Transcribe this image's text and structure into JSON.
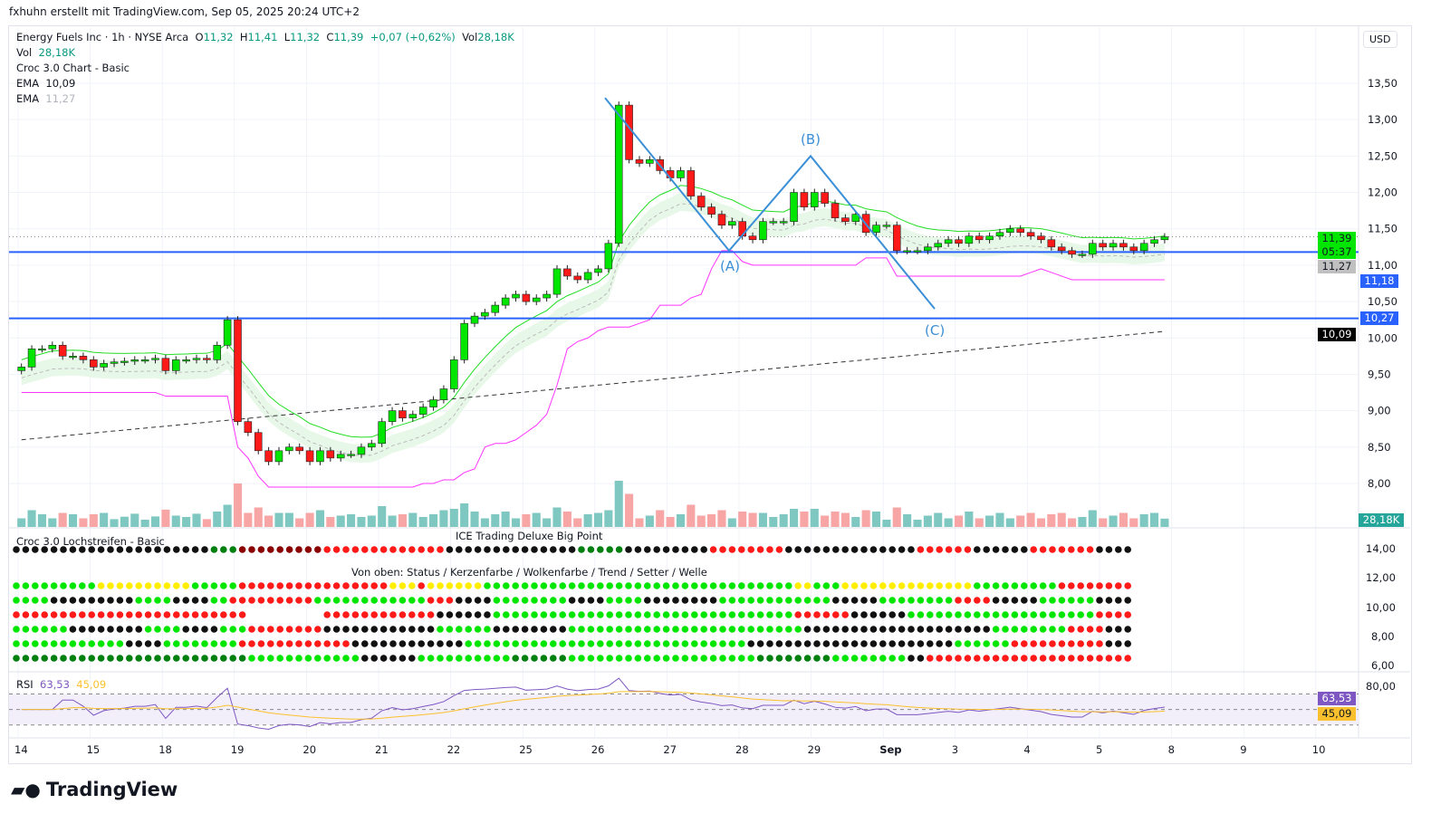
{
  "credit": "fxhuhn erstellt mit TradingView.com, Sep 05, 2025 20:24 UTC+2",
  "legend": {
    "symbol": "Energy Fuels Inc · 1h · NYSE Arca",
    "o_label": "O",
    "o": "11,32",
    "h_label": "H",
    "h": "11,41",
    "l_label": "L",
    "l": "11,32",
    "c_label": "C",
    "c": "11,39",
    "change": "+0,07 (+0,62%)",
    "vol_label": "Vol",
    "vol": "28,18K",
    "vol_row_label": "Vol",
    "vol_row": "28,18K",
    "croc": "Croc 3.0 Chart - Basic",
    "ema1_label": "EMA",
    "ema1": "10,09",
    "ema2_label": "EMA",
    "ema2": "11,27"
  },
  "currency": "USD",
  "price_tags": {
    "last": "11,39",
    "countdown": "05:37",
    "ema_fast": "11,27",
    "line1": "11,18",
    "line2": "10,27",
    "ema_slow": "10,09",
    "volume": "28,18K",
    "rsi": "63,53",
    "rsi_ma": "45,09"
  },
  "wave_labels": [
    "(A)",
    "(B)",
    "(C)"
  ],
  "panel2": {
    "title": "Croc 3.0 Lochstreifen - Basic",
    "subtitle": "ICE Trading Deluxe Big Point",
    "rows_caption": "Von oben: Status / Kerzenfarbe / Wolkenfarbe / Trend / Setter / Welle",
    "axis": [
      "14,00",
      "12,00",
      "10,00",
      "8,00",
      "6,00"
    ]
  },
  "rsi": {
    "label": "RSI",
    "value": "63,53",
    "ma": "45,09",
    "axis": "80,00"
  },
  "brand": "TradingView",
  "colors": {
    "up": "#00e600",
    "down": "#ff1a1a",
    "vol_up": "#7fc8c2",
    "vol_down": "#f7a5a5",
    "line": "#2962ff",
    "abc": "#3b8fd6",
    "cloud": "#e8f8e8",
    "pink": "#ff33ff"
  },
  "chart_data": {
    "type": "candlestick",
    "title": "Energy Fuels Inc · 1h · NYSE Arca",
    "ylim": [
      7.7,
      13.8
    ],
    "yticks": [
      "13,50",
      "13,00",
      "12,50",
      "12,00",
      "11,50",
      "11,00",
      "10,50",
      "10,00",
      "9,50",
      "9,00",
      "8,50",
      "8,00"
    ],
    "ytick_values": [
      13.5,
      13,
      12.5,
      12,
      11.5,
      11,
      10.5,
      10,
      9.5,
      9,
      8.5,
      8
    ],
    "xticks": [
      "14",
      "15",
      "18",
      "19",
      "20",
      "21",
      "22",
      "25",
      "26",
      "27",
      "28",
      "29",
      "Sep",
      "3",
      "4",
      "5",
      "8",
      "9",
      "10"
    ],
    "bars_per_day": 7,
    "closes": [
      9.6,
      9.85,
      9.85,
      9.9,
      9.75,
      9.75,
      9.7,
      9.6,
      9.65,
      9.67,
      9.68,
      9.7,
      9.7,
      9.72,
      9.55,
      9.7,
      9.7,
      9.72,
      9.7,
      9.9,
      10.25,
      8.85,
      8.7,
      8.45,
      8.3,
      8.45,
      8.5,
      8.45,
      8.3,
      8.45,
      8.35,
      8.4,
      8.4,
      8.5,
      8.55,
      8.85,
      9.0,
      8.9,
      8.95,
      9.05,
      9.15,
      9.3,
      9.7,
      10.2,
      10.3,
      10.35,
      10.45,
      10.55,
      10.6,
      10.5,
      10.55,
      10.6,
      10.95,
      10.85,
      10.8,
      10.9,
      10.95,
      11.3,
      13.2,
      12.45,
      12.4,
      12.45,
      12.3,
      12.2,
      12.3,
      11.95,
      11.8,
      11.7,
      11.55,
      11.6,
      11.4,
      11.35,
      11.6,
      11.6,
      11.6,
      12.0,
      11.8,
      12.0,
      11.85,
      11.65,
      11.6,
      11.7,
      11.45,
      11.55,
      11.55,
      11.2,
      11.2,
      11.2,
      11.25,
      11.3,
      11.35,
      11.3,
      11.4,
      11.35,
      11.4,
      11.45,
      11.5,
      11.45,
      11.4,
      11.35,
      11.25,
      11.2,
      11.15,
      11.15,
      11.3,
      11.25,
      11.3,
      11.25,
      11.2,
      11.3,
      11.35,
      11.39
    ],
    "hlines": [
      11.18,
      10.27
    ],
    "abc_points": [
      13.3,
      11.2,
      12.5,
      10.4
    ],
    "ema_slow": {
      "start": 8.6,
      "end": 10.09
    },
    "dot_rows": [
      "k21d3R9r13k14d5k9r8k14r6k6r7k4",
      "g9y10g5r16y3r1y6g33y2g3y14g9r12y6g4y5g9",
      "g4k9g4k4g2r9g12r3k4g8k4g4k8g12k5g8r4k5g6k9g3",
      "r25w8r12k6g32r6k6g20r4",
      "g6k8g4k4g3r8k12g6k8g25k20g8r4k4",
      "g12k4g8r12k12g30k22g6r10k3",
      "d25g12k6g10d6g20d8g8k2r22"
    ],
    "rsi_levels": [
      70,
      50,
      30
    ]
  }
}
